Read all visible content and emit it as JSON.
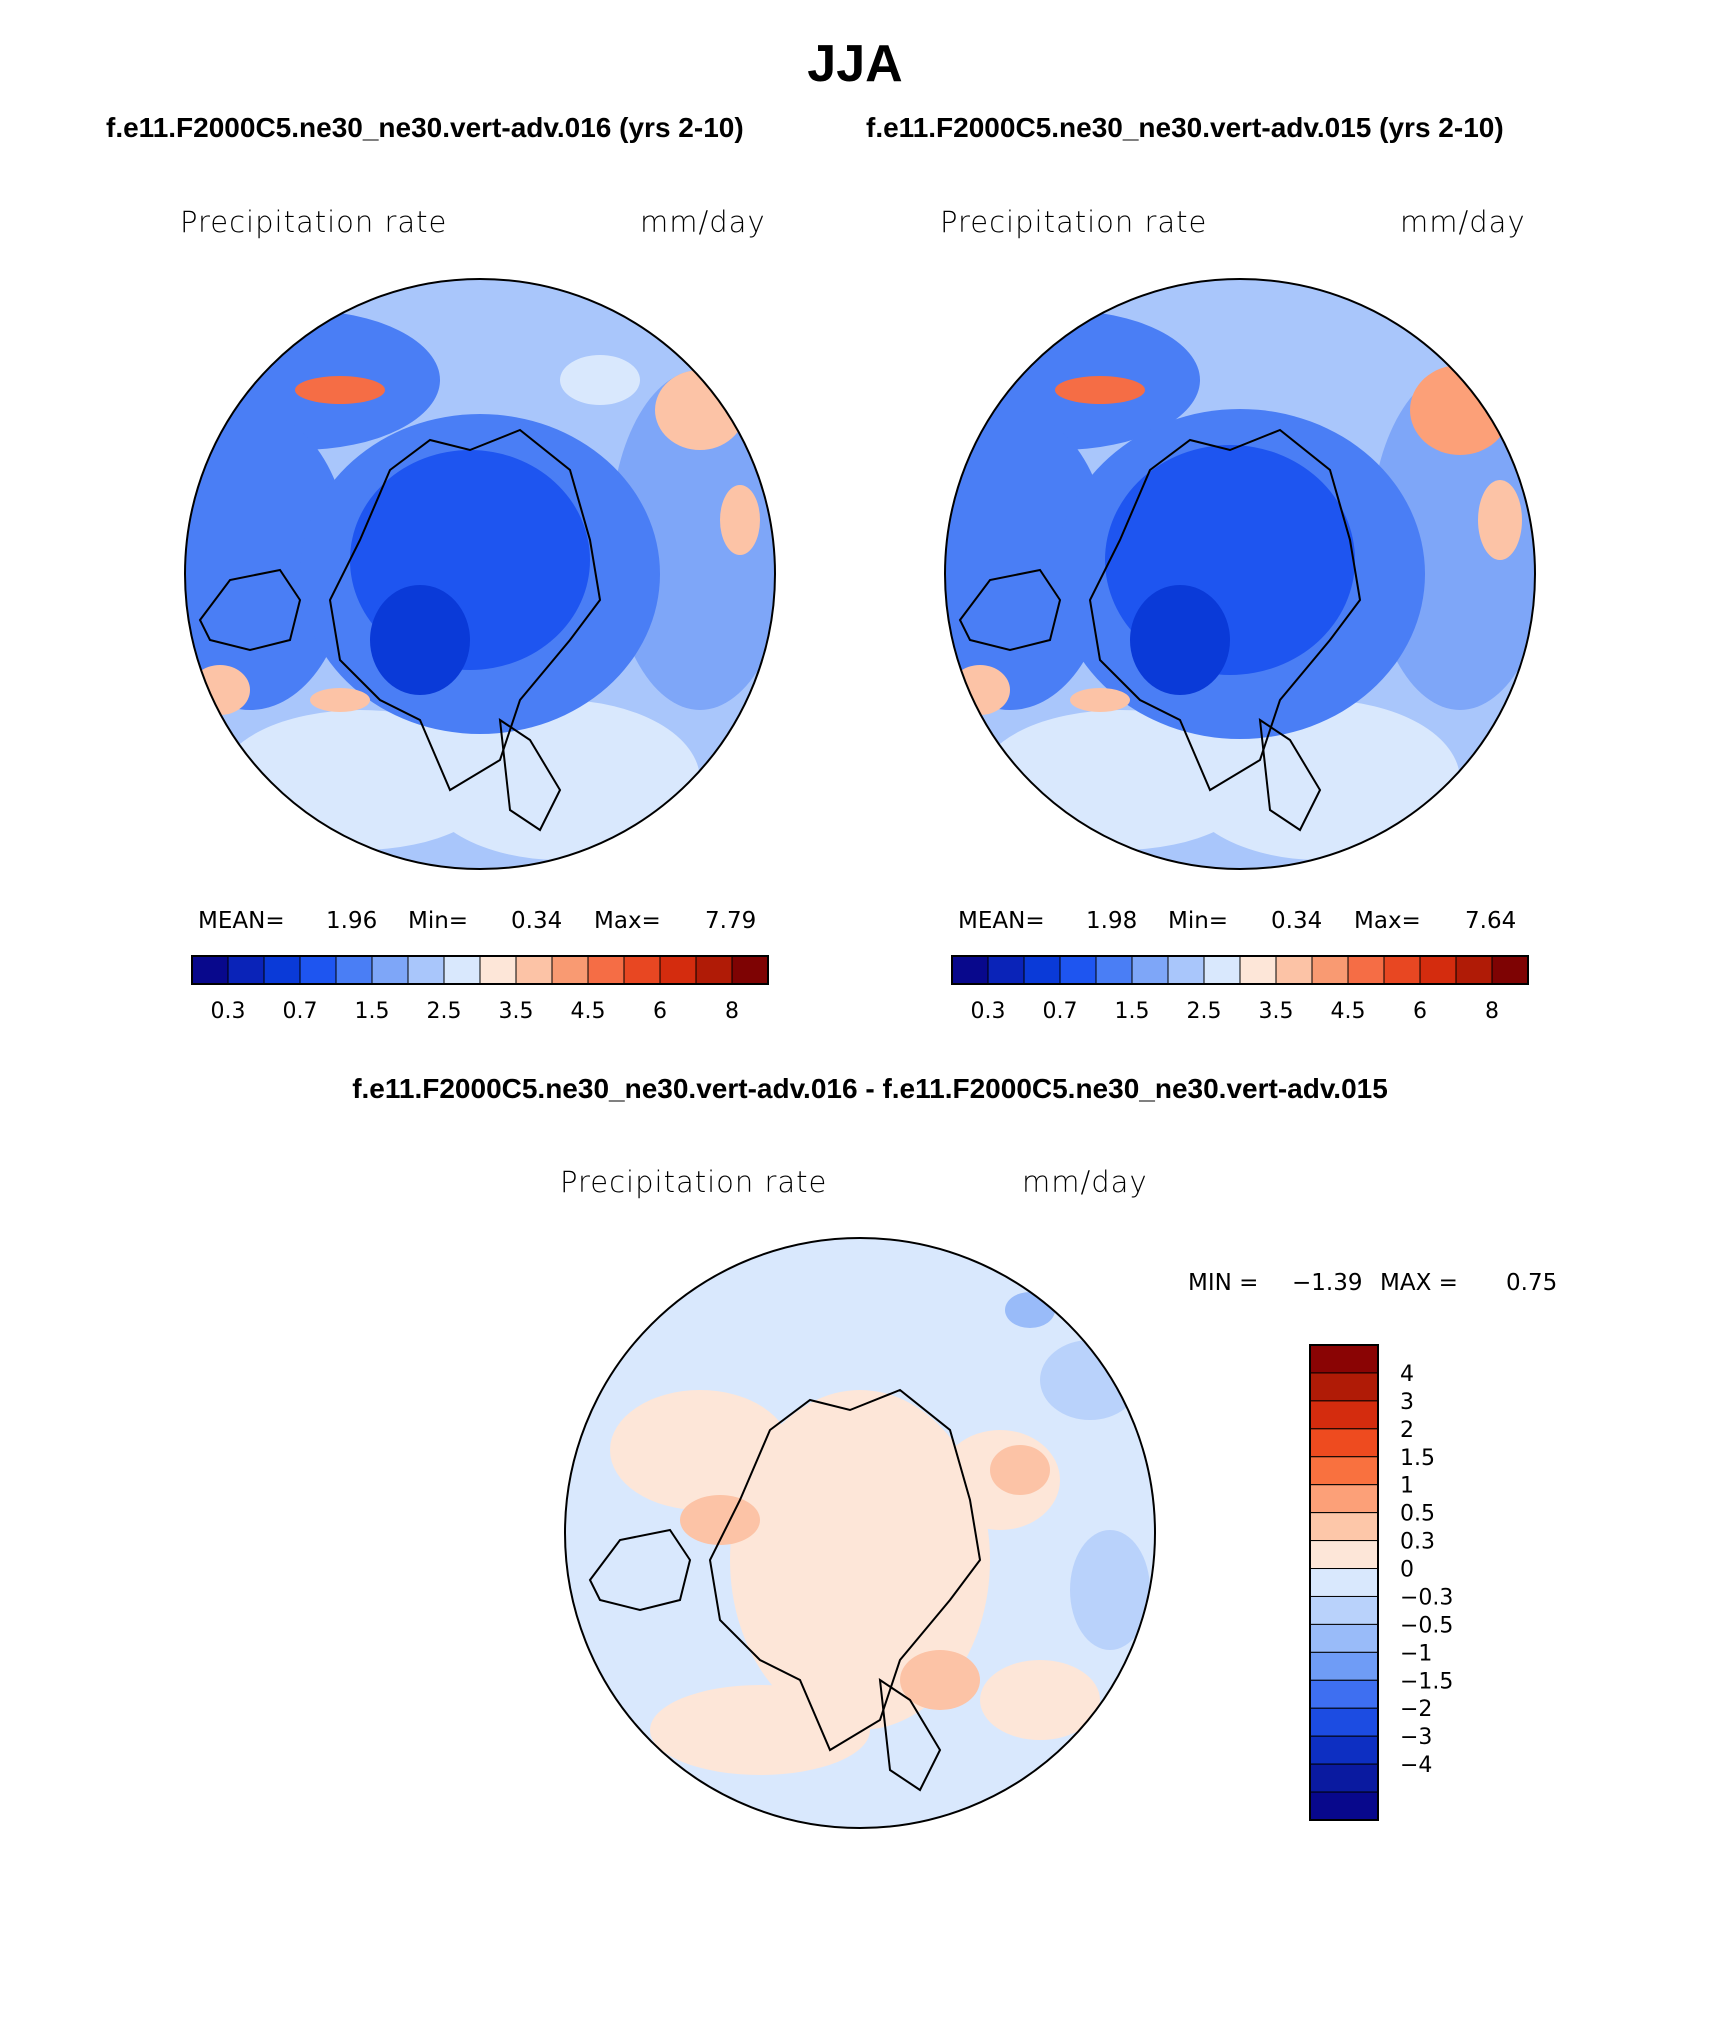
{
  "season": "JJA",
  "panels": [
    {
      "case": "f.e11.F2000C5.ne30_ne30.vert-adv.016 (yrs 2-10)",
      "variable": "Precipitation rate",
      "units": "mm/day",
      "mean_label": "MEAN=",
      "mean": "1.96",
      "min_label": "Min=",
      "min": "0.34",
      "max_label": "Max=",
      "max": "7.79"
    },
    {
      "case": "f.e11.F2000C5.ne30_ne30.vert-adv.015 (yrs 2-10)",
      "variable": "Precipitation rate",
      "units": "mm/day",
      "mean_label": "MEAN=",
      "mean": "1.98",
      "min_label": "Min=",
      "min": "0.34",
      "max_label": "Max=",
      "max": "7.64"
    }
  ],
  "abs_colorbar": {
    "colors": [
      "#08088c",
      "#0a23b8",
      "#0a3ad8",
      "#1e55f0",
      "#4a7ef5",
      "#7ea6f8",
      "#a9c6fb",
      "#d9e8fd",
      "#fde6d8",
      "#fcc3a6",
      "#f99a72",
      "#f56d45",
      "#e84722",
      "#d42c0e",
      "#b01b06",
      "#7e0303"
    ],
    "tick_labels": [
      "0.3",
      "0.7",
      "1.5",
      "2.5",
      "3.5",
      "4.5",
      "6",
      "8"
    ]
  },
  "diff_panel": {
    "title": "f.e11.F2000C5.ne30_ne30.vert-adv.016 - f.e11.F2000C5.ne30_ne30.vert-adv.015",
    "variable": "Precipitation rate",
    "units": "mm/day",
    "min_label": "MIN =",
    "min": "−1.39",
    "max_label": "MAX =",
    "max": "0.75"
  },
  "diff_colorbar": {
    "colors": [
      "#8a0404",
      "#b01b06",
      "#d42c0e",
      "#ee4b1f",
      "#f9713f",
      "#fca078",
      "#fdc7a9",
      "#fde6d8",
      "#d9e8fd",
      "#b9d2fb",
      "#99bbf9",
      "#6f9cf6",
      "#3e6ff1",
      "#1c4ce2",
      "#0d2fc2",
      "#0a1aa0",
      "#08088c"
    ],
    "tick_labels": [
      "4",
      "3",
      "2",
      "1.5",
      "1",
      "0.5",
      "0.3",
      "0",
      "−0.3",
      "−0.5",
      "−1",
      "−1.5",
      "−2",
      "−3",
      "−4"
    ]
  }
}
